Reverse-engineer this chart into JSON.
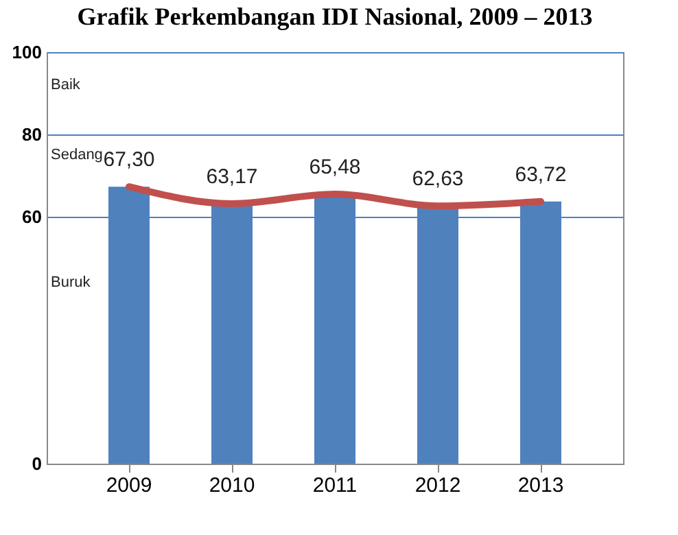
{
  "chart_data": {
    "type": "bar",
    "title": "Grafik Perkembangan IDI Nasional, 2009 – 2013",
    "categories": [
      "2009",
      "2010",
      "2011",
      "2012",
      "2013"
    ],
    "series": [
      {
        "color": "#4f81bd",
        "values": [
          67.3,
          63.17,
          65.48,
          62.63,
          63.72
        ],
        "value_labels": [
          "67,30",
          "63,17",
          "65,48",
          "62,63",
          "63,72"
        ]
      },
      {
        "type": "line",
        "color": "#c0504d",
        "values": [
          67.3,
          63.17,
          65.48,
          62.63,
          63.72
        ]
      }
    ],
    "annotations": [
      "Baik",
      "Sedang",
      "Buruk"
    ],
    "ylim": [
      0,
      100
    ],
    "yticks": [
      0,
      60,
      80,
      100
    ],
    "grid": "y"
  }
}
